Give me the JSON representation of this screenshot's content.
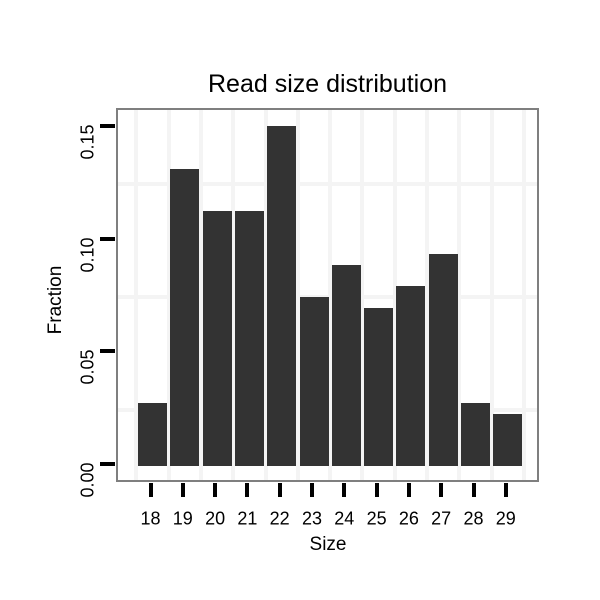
{
  "page": {
    "background": "#ffffff"
  },
  "chart_data": {
    "type": "bar",
    "title": "Read size distribution",
    "xlabel": "Size",
    "ylabel": "Fraction",
    "categories": [
      "18",
      "19",
      "20",
      "21",
      "22",
      "23",
      "24",
      "25",
      "26",
      "27",
      "28",
      "29"
    ],
    "values": [
      0.028,
      0.132,
      0.113,
      0.113,
      0.151,
      0.075,
      0.089,
      0.07,
      0.08,
      0.094,
      0.028,
      0.023
    ],
    "ylim": [
      0,
      0.158
    ],
    "ytick_labels": [
      "0.00",
      "0.05",
      "0.10",
      "0.15"
    ],
    "ytick_values": [
      0.0,
      0.05,
      0.1,
      0.15
    ],
    "grid": {
      "minor_y_values": [
        0.025,
        0.075,
        0.125
      ],
      "minor_x_half_integers": true,
      "major_gridlines_visible": false
    },
    "legend": "none",
    "colors": {
      "bar_fill": "#333333",
      "panel_border": "#7f7f7f",
      "grid_minor": "#f4f4f4",
      "tick": "#000000",
      "text": "#000000",
      "panel_background": "#ffffff"
    }
  }
}
